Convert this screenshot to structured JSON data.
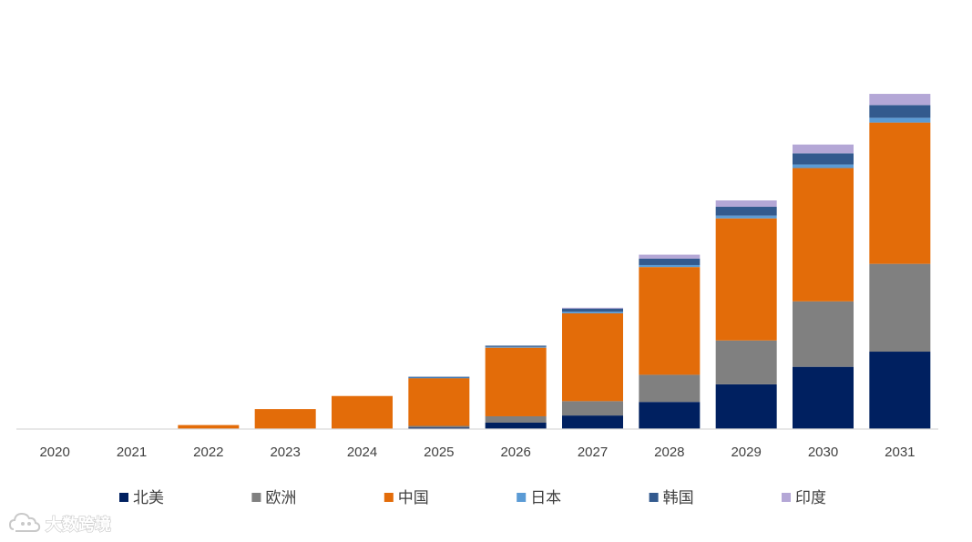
{
  "chart_data": {
    "type": "bar",
    "stacked": true,
    "categories": [
      "2020",
      "2021",
      "2022",
      "2023",
      "2024",
      "2025",
      "2026",
      "2027",
      "2028",
      "2029",
      "2030",
      "2031"
    ],
    "series": [
      {
        "name": "北美",
        "color": "#002060",
        "values": [
          0,
          0,
          0,
          0,
          0.4,
          2,
          8,
          17,
          34,
          56,
          78,
          97
        ]
      },
      {
        "name": "欧洲",
        "color": "#808080",
        "values": [
          0,
          0,
          0,
          0,
          0,
          2,
          8,
          18,
          34,
          55,
          82,
          110
        ]
      },
      {
        "name": "中国",
        "color": "#E36C09",
        "values": [
          0,
          0.5,
          5,
          25,
          41,
          60,
          86,
          110,
          135,
          153,
          167,
          177
        ]
      },
      {
        "name": "日本",
        "color": "#5B9BD5",
        "values": [
          0,
          0,
          0,
          0,
          0,
          0.5,
          1,
          2,
          2.5,
          3.5,
          4.5,
          6
        ]
      },
      {
        "name": "韩国",
        "color": "#335A8E",
        "values": [
          0,
          0,
          0,
          0,
          0,
          1,
          1.5,
          4,
          8,
          11,
          14,
          16
        ]
      },
      {
        "name": "印度",
        "color": "#B4A7D6",
        "values": [
          0,
          0,
          0,
          0,
          0,
          0,
          0,
          1,
          5,
          8,
          11,
          14
        ]
      }
    ],
    "ylim": [
      0,
      460
    ],
    "grid": false,
    "y_axis_visible": false,
    "legend_position": "bottom",
    "title": "",
    "xlabel": "",
    "ylabel": ""
  },
  "watermark": {
    "text": "大数跨境",
    "icon": "cloud-logo-icon"
  }
}
